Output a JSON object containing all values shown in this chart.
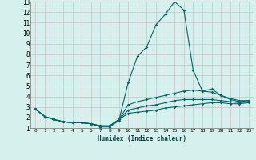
{
  "title": "",
  "xlabel": "Humidex (Indice chaleur)",
  "xlim": [
    -0.5,
    23.5
  ],
  "ylim": [
    1,
    13
  ],
  "yticks": [
    1,
    2,
    3,
    4,
    5,
    6,
    7,
    8,
    9,
    10,
    11,
    12,
    13
  ],
  "xticks": [
    0,
    1,
    2,
    3,
    4,
    5,
    6,
    7,
    8,
    9,
    10,
    11,
    12,
    13,
    14,
    15,
    16,
    17,
    18,
    19,
    20,
    21,
    22,
    23
  ],
  "background_color": "#d6f0ee",
  "grid_color": "#c8b8b8",
  "line_color": "#006666",
  "lines": [
    {
      "x": [
        0,
        1,
        2,
        3,
        4,
        5,
        6,
        7,
        8,
        9,
        10,
        11,
        12,
        13,
        14,
        15,
        16,
        17,
        18,
        19,
        20,
        21,
        22,
        23
      ],
      "y": [
        2.8,
        2.1,
        1.8,
        1.6,
        1.5,
        1.5,
        1.4,
        1.1,
        1.1,
        1.7,
        5.3,
        7.8,
        8.7,
        10.8,
        11.8,
        13.0,
        12.2,
        6.5,
        4.5,
        4.7,
        4.1,
        3.7,
        3.5,
        3.6
      ]
    },
    {
      "x": [
        0,
        1,
        2,
        3,
        4,
        5,
        6,
        7,
        8,
        9,
        10,
        11,
        12,
        13,
        14,
        15,
        16,
        17,
        18,
        19,
        20,
        21,
        22,
        23
      ],
      "y": [
        2.8,
        2.1,
        1.8,
        1.6,
        1.5,
        1.5,
        1.4,
        1.2,
        1.2,
        1.8,
        3.2,
        3.5,
        3.7,
        3.9,
        4.1,
        4.3,
        4.5,
        4.6,
        4.5,
        4.4,
        4.1,
        3.8,
        3.6,
        3.6
      ]
    },
    {
      "x": [
        0,
        1,
        2,
        3,
        4,
        5,
        6,
        7,
        8,
        9,
        10,
        11,
        12,
        13,
        14,
        15,
        16,
        17,
        18,
        19,
        20,
        21,
        22,
        23
      ],
      "y": [
        2.8,
        2.1,
        1.8,
        1.6,
        1.5,
        1.5,
        1.4,
        1.2,
        1.2,
        1.8,
        2.7,
        2.9,
        3.1,
        3.2,
        3.4,
        3.6,
        3.7,
        3.7,
        3.7,
        3.7,
        3.6,
        3.5,
        3.4,
        3.5
      ]
    },
    {
      "x": [
        0,
        1,
        2,
        3,
        4,
        5,
        6,
        7,
        8,
        9,
        10,
        11,
        12,
        13,
        14,
        15,
        16,
        17,
        18,
        19,
        20,
        21,
        22,
        23
      ],
      "y": [
        2.8,
        2.1,
        1.8,
        1.6,
        1.5,
        1.5,
        1.4,
        1.2,
        1.2,
        1.8,
        2.4,
        2.5,
        2.6,
        2.7,
        2.9,
        3.0,
        3.1,
        3.2,
        3.3,
        3.4,
        3.4,
        3.3,
        3.3,
        3.4
      ]
    }
  ]
}
